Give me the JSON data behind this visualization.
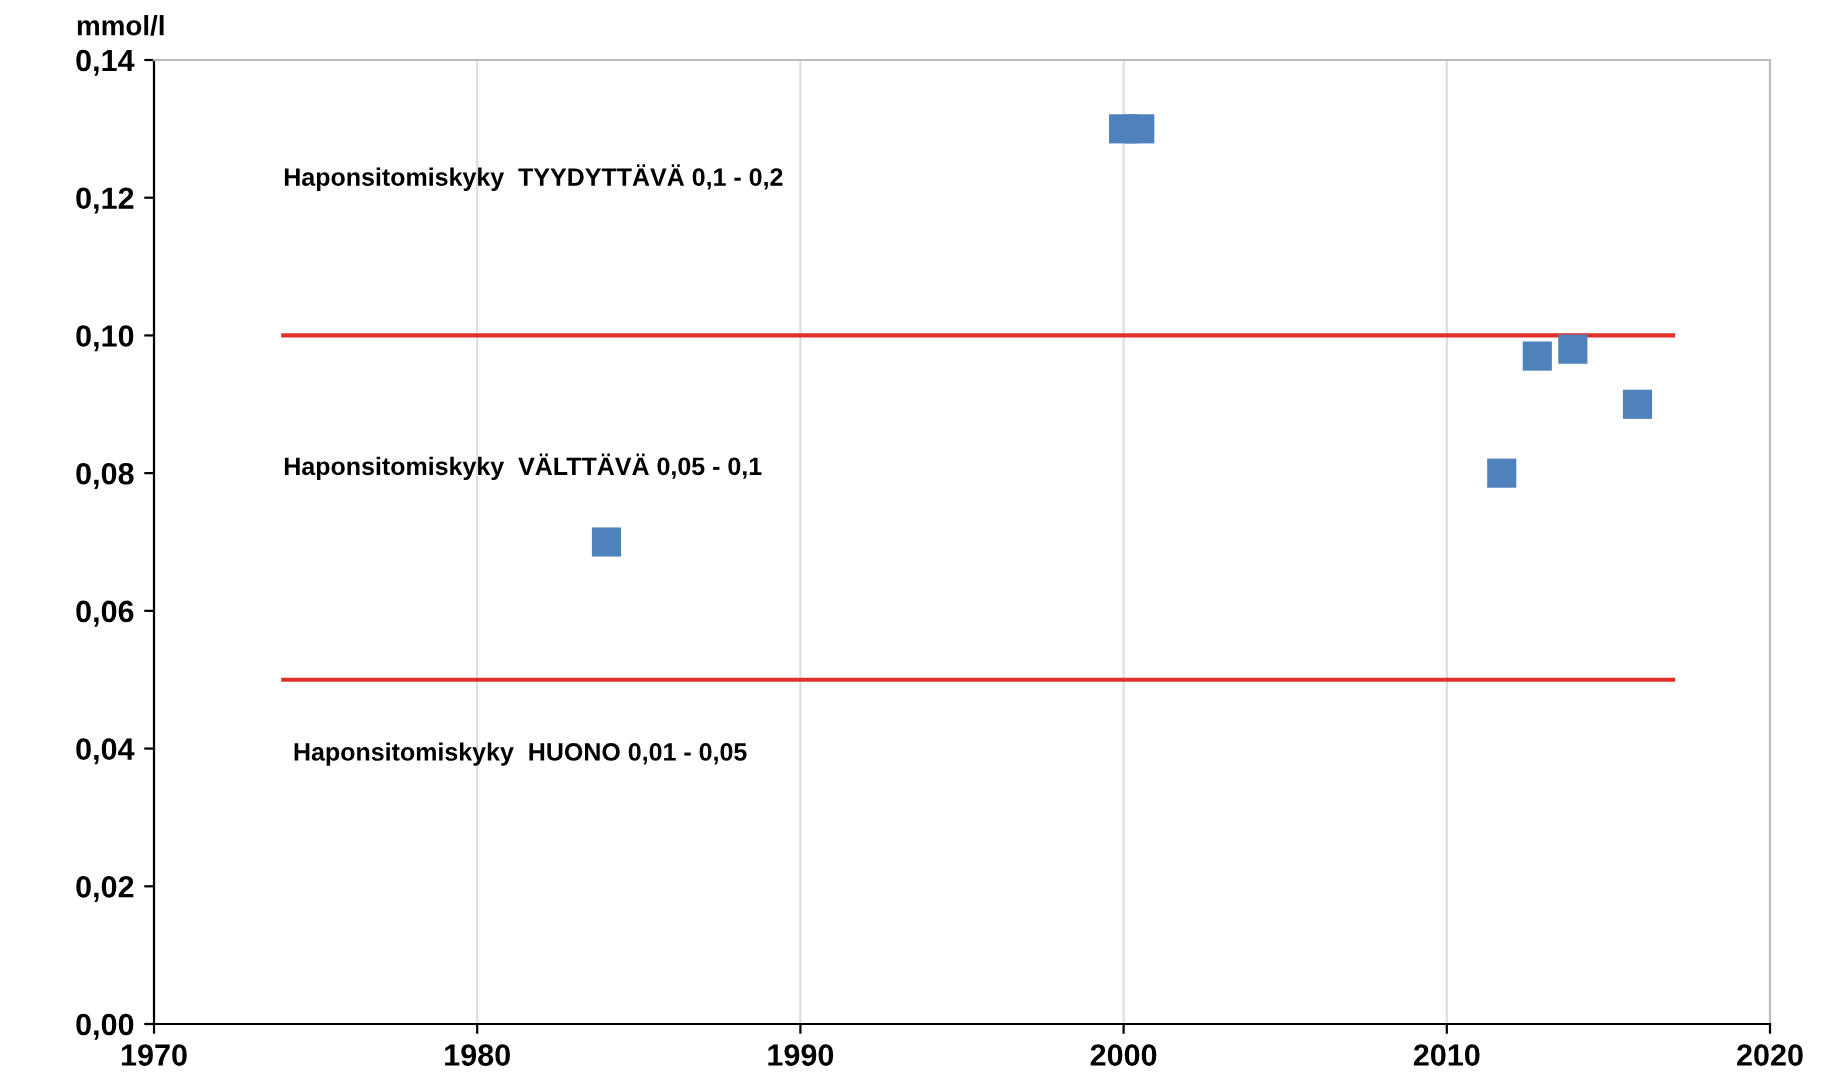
{
  "chart_data": {
    "type": "scatter",
    "ylabel": "mmol/l",
    "x": [
      1984,
      2000,
      2000.5,
      2011.7,
      2012.8,
      2013.9,
      2015.9
    ],
    "series": [
      {
        "color": "#4f81bd",
        "marker": "square",
        "values": [
          0.07,
          0.13,
          0.13,
          0.08,
          0.097,
          0.098,
          0.09
        ]
      }
    ],
    "ref_lines": [
      {
        "axis": "y",
        "value": 0.1,
        "color": "#e0302a"
      },
      {
        "axis": "y",
        "value": 0.05,
        "color": "#e0302a"
      }
    ],
    "annotations": [
      "Haponsitomiskyky  TYYDYTTÄVÄ 0,1 - 0,2",
      "Haponsitomiskyky  VÄLTTÄVÄ 0,05 - 0,1",
      "Haponsitomiskyky  HUONO 0,01 - 0,05"
    ],
    "xlim": [
      1970,
      2020
    ],
    "xticks": [
      1970,
      1980,
      1990,
      2000,
      2010,
      2020
    ],
    "ylim": [
      0,
      0.14
    ],
    "yticks": [
      {
        "value": 0,
        "label": "0,00"
      },
      {
        "value": 0.02,
        "label": "0,02"
      },
      {
        "value": 0.04,
        "label": "0,04"
      },
      {
        "value": 0.06,
        "label": "0,06"
      },
      {
        "value": 0.08,
        "label": "0,08"
      },
      {
        "value": 0.1,
        "label": "0,10"
      },
      {
        "value": 0.12,
        "label": "0,12"
      },
      {
        "value": 0.14,
        "label": "0,14"
      }
    ],
    "grid": "x",
    "legend": false
  }
}
